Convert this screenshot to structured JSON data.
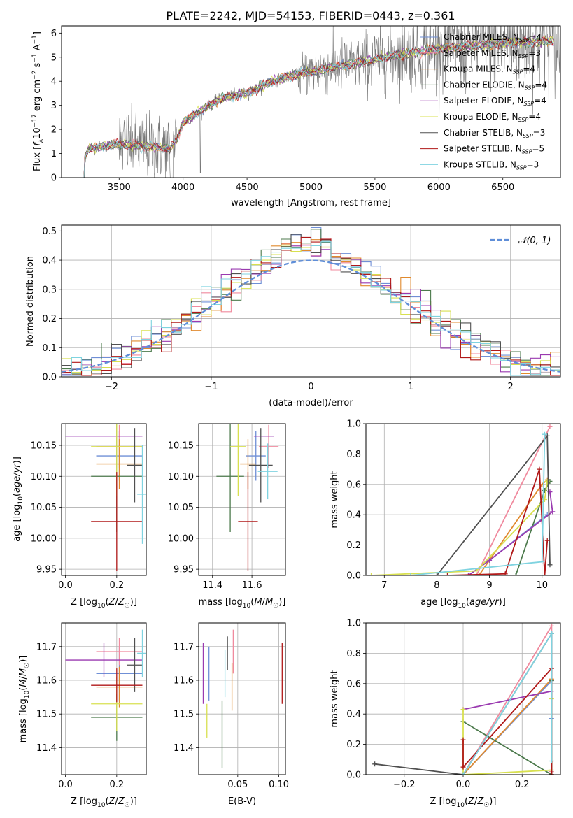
{
  "figure": {
    "title": "PLATE=2242, MJD=54153, FIBERID=0443, z=0.361"
  },
  "colors": {
    "series": [
      "#6f8fd6",
      "#f08a9e",
      "#e08a2e",
      "#4c7a4c",
      "#9a3ab0",
      "#d8e050",
      "#505050",
      "#b01818",
      "#7fd3e0"
    ],
    "normal_fit": "#5f8ed8"
  },
  "legend": {
    "series_names": [
      "Chabrier MILES, N_SSP=4",
      "Salpeter MILES, N_SSP=3",
      "Kroupa MILES, N_SSP=4",
      "Chabrier ELODIE, N_SSP=4",
      "Salpeter ELODIE, N_SSP=4",
      "Kroupa ELODIE, N_SSP=4",
      "Chabrier STELIB, N_SSP=3",
      "Salpeter STELIB, N_SSP=5",
      "Kroupa STELIB, N_SSP=3"
    ],
    "series_labels": [
      {
        "prefix": "Chabrier MILES, N",
        "sub": "SSP",
        "suffix": "=4"
      },
      {
        "prefix": "Salpeter MILES, N",
        "sub": "SSP",
        "suffix": "=3"
      },
      {
        "prefix": "Kroupa MILES, N",
        "sub": "SSP",
        "suffix": "=4"
      },
      {
        "prefix": "Chabrier ELODIE, N",
        "sub": "SSP",
        "suffix": "=4"
      },
      {
        "prefix": "Salpeter ELODIE, N",
        "sub": "SSP",
        "suffix": "=4"
      },
      {
        "prefix": "Kroupa ELODIE, N",
        "sub": "SSP",
        "suffix": "=4"
      },
      {
        "prefix": "Chabrier STELIB, N",
        "sub": "SSP",
        "suffix": "=3"
      },
      {
        "prefix": "Salpeter STELIB, N",
        "sub": "SSP",
        "suffix": "=5"
      },
      {
        "prefix": "Kroupa STELIB, N",
        "sub": "SSP",
        "suffix": "=3"
      }
    ],
    "normal_label": "𝒩(0, 1)"
  },
  "chart_data": [
    {
      "id": "spectrum",
      "type": "line",
      "xlabel": "wavelength [Angstrom, rest frame]",
      "ylabel": "Flux [f_λ 10^-17 erg cm^-2 s^-1 A^-1]",
      "xlim": [
        3050,
        6950
      ],
      "ylim": [
        0,
        6.3
      ],
      "xticks": [
        3500,
        4000,
        4500,
        5000,
        5500,
        6000,
        6500
      ],
      "yticks": [
        0,
        1,
        2,
        3,
        4,
        5,
        6
      ],
      "grid": false,
      "legend_position": "right",
      "x_range": [
        3210,
        6950
      ],
      "continuum_knots": [
        [
          3210,
          0.5
        ],
        [
          3260,
          1.2
        ],
        [
          3500,
          1.4
        ],
        [
          3700,
          1.3
        ],
        [
          3900,
          1.2
        ],
        [
          3950,
          1.6
        ],
        [
          4000,
          2.3
        ],
        [
          4300,
          3.3
        ],
        [
          4500,
          3.5
        ],
        [
          4700,
          4.0
        ],
        [
          4900,
          4.3
        ],
        [
          5100,
          4.5
        ],
        [
          5300,
          4.7
        ],
        [
          5500,
          4.9
        ],
        [
          5800,
          5.2
        ],
        [
          6100,
          5.4
        ],
        [
          6500,
          5.6
        ],
        [
          6950,
          5.7
        ]
      ]
    },
    {
      "id": "residuals",
      "type": "line",
      "xlabel": "(data-model)/error",
      "ylabel": "Normed distribution",
      "xlim": [
        -2.5,
        2.5
      ],
      "ylim": [
        0,
        0.52
      ],
      "xticks": [
        -2,
        -1,
        0,
        1,
        2
      ],
      "yticks": [
        0.0,
        0.1,
        0.2,
        0.3,
        0.4,
        0.5
      ],
      "grid": true,
      "legend_position": "top-right",
      "bin_width": 0.1
    },
    {
      "id": "age_vs_Z",
      "type": "scatter",
      "xlabel": "Z [log10(Z/Z☉)]",
      "ylabel": "age [log10(age/yr)]",
      "xlim": [
        -0.015,
        0.315
      ],
      "ylim": [
        9.94,
        10.185
      ],
      "xticks": [
        0.0,
        0.2
      ],
      "yticks": [
        9.95,
        10.0,
        10.05,
        10.1,
        10.15
      ],
      "grid": true,
      "points": [
        {
          "x": 0.21,
          "y": 10.133,
          "xerr": 0.09,
          "yerr": 0.04
        },
        {
          "x": 0.21,
          "y": 10.148,
          "xerr": 0.09,
          "yerr": 0.035
        },
        {
          "x": 0.21,
          "y": 10.12,
          "xerr": 0.09,
          "yerr": 0.04
        },
        {
          "x": 0.2,
          "y": 10.1,
          "xerr": 0.1,
          "yerr": 0.09
        },
        {
          "x": 0.15,
          "y": 10.165,
          "xerr": 0.15,
          "yerr": 0.0
        },
        {
          "x": 0.2,
          "y": 10.148,
          "xerr": 0.1,
          "yerr": 0.08
        },
        {
          "x": 0.27,
          "y": 10.118,
          "xerr": 0.03,
          "yerr": 0.06
        },
        {
          "x": 0.2,
          "y": 10.027,
          "xerr": 0.1,
          "yerr": 0.08
        },
        {
          "x": 0.3,
          "y": 10.071,
          "xerr": 0.02,
          "yerr": 0.08
        }
      ]
    },
    {
      "id": "age_vs_mass",
      "type": "scatter",
      "xlabel": "mass [log10(M/M☉)]",
      "ylabel": "",
      "xlim": [
        11.33,
        11.77
      ],
      "ylim": [
        9.94,
        10.185
      ],
      "xticks": [
        11.4,
        11.6
      ],
      "yticks": [
        9.95,
        10.0,
        10.05,
        10.1,
        10.15
      ],
      "grid": true,
      "points": [
        {
          "x": 11.62,
          "y": 10.133,
          "xerr": 0.05,
          "yerr": 0.04
        },
        {
          "x": 11.685,
          "y": 10.148,
          "xerr": 0.05,
          "yerr": 0.035
        },
        {
          "x": 11.58,
          "y": 10.12,
          "xerr": 0.04,
          "yerr": 0.04
        },
        {
          "x": 11.49,
          "y": 10.1,
          "xerr": 0.07,
          "yerr": 0.09
        },
        {
          "x": 11.66,
          "y": 10.165,
          "xerr": 0.05,
          "yerr": 0.0
        },
        {
          "x": 11.53,
          "y": 10.148,
          "xerr": 0.04,
          "yerr": 0.08
        },
        {
          "x": 11.645,
          "y": 10.118,
          "xerr": 0.06,
          "yerr": 0.06
        },
        {
          "x": 11.58,
          "y": 10.027,
          "xerr": 0.05,
          "yerr": 0.08
        },
        {
          "x": 11.68,
          "y": 10.108,
          "xerr": 0.05,
          "yerr": 0.045
        }
      ]
    },
    {
      "id": "massweight_vs_age",
      "type": "line",
      "xlabel": "age [log10(age/yr)]",
      "ylabel": "mass weight",
      "xlim": [
        6.65,
        10.35
      ],
      "ylim": [
        0,
        1.0
      ],
      "xticks": [
        7,
        8,
        9,
        10
      ],
      "yticks": [
        0.0,
        0.2,
        0.4,
        0.6,
        0.8,
        1.0
      ],
      "grid": true,
      "lines": [
        [
          [
            8.6,
            0.0
          ],
          [
            9.0,
            0.1
          ],
          [
            10.1,
            0.4
          ]
        ],
        [
          [
            8.75,
            0.0
          ],
          [
            10.15,
            0.98
          ]
        ],
        [
          [
            8.8,
            0.0
          ],
          [
            10.0,
            0.6
          ],
          [
            10.1,
            0.63
          ]
        ],
        [
          [
            9.5,
            0.0
          ],
          [
            10.05,
            0.56
          ],
          [
            10.15,
            0.62
          ]
        ],
        [
          [
            8.6,
            0.0
          ],
          [
            9.0,
            0.1
          ],
          [
            10.2,
            0.42
          ],
          [
            10.15,
            0.55
          ]
        ],
        [
          [
            6.75,
            0.0
          ],
          [
            8.75,
            0.03
          ],
          [
            10.05,
            0.5
          ],
          [
            10.1,
            0.62
          ]
        ],
        [
          [
            8.0,
            0.0
          ],
          [
            10.1,
            0.92
          ],
          [
            10.15,
            0.07
          ]
        ],
        [
          [
            8.2,
            0.0
          ],
          [
            9.3,
            0.01
          ],
          [
            9.95,
            0.7
          ],
          [
            10.05,
            0.0
          ],
          [
            10.1,
            0.23
          ]
        ],
        [
          [
            7.5,
            0.0
          ],
          [
            10.0,
            0.09
          ],
          [
            10.05,
            0.93
          ]
        ]
      ]
    },
    {
      "id": "mass_vs_Z",
      "type": "scatter",
      "xlabel": "Z [log10(Z/Z☉)]",
      "ylabel": "mass [log10(M/M☉)]",
      "xlim": [
        -0.015,
        0.315
      ],
      "ylim": [
        11.32,
        11.77
      ],
      "xticks": [
        0.0,
        0.2
      ],
      "yticks": [
        11.4,
        11.5,
        11.6,
        11.7
      ],
      "grid": true,
      "points": [
        {
          "x": 0.21,
          "y": 11.62,
          "xerr": 0.09,
          "yerr": 0.08
        },
        {
          "x": 0.21,
          "y": 11.685,
          "xerr": 0.09,
          "yerr": 0.04
        },
        {
          "x": 0.21,
          "y": 11.58,
          "xerr": 0.09,
          "yerr": 0.06
        },
        {
          "x": 0.2,
          "y": 11.49,
          "xerr": 0.1,
          "yerr": 0.07
        },
        {
          "x": 0.15,
          "y": 11.66,
          "xerr": 0.15,
          "yerr": 0.05
        },
        {
          "x": 0.2,
          "y": 11.53,
          "xerr": 0.1,
          "yerr": 0.08
        },
        {
          "x": 0.27,
          "y": 11.645,
          "xerr": 0.03,
          "yerr": 0.08
        },
        {
          "x": 0.2,
          "y": 11.585,
          "xerr": 0.1,
          "yerr": 0.05
        },
        {
          "x": 0.3,
          "y": 11.68,
          "xerr": 0.02,
          "yerr": 0.07
        }
      ]
    },
    {
      "id": "mass_vs_ebv",
      "type": "scatter",
      "xlabel": "E(B-V)",
      "ylabel": "",
      "xlim": [
        0.0025,
        0.108
      ],
      "ylim": [
        11.32,
        11.77
      ],
      "xticks": [
        0.05,
        0.1
      ],
      "yticks": [
        11.4,
        11.5,
        11.6,
        11.7
      ],
      "grid": true,
      "points": [
        {
          "x": 0.015,
          "y": 11.62,
          "xerr": 0.0,
          "yerr": 0.08
        },
        {
          "x": 0.0445,
          "y": 11.685,
          "xerr": 0.0,
          "yerr": 0.065
        },
        {
          "x": 0.043,
          "y": 11.58,
          "xerr": 0.0,
          "yerr": 0.07
        },
        {
          "x": 0.031,
          "y": 11.44,
          "xerr": 0.0,
          "yerr": 0.1
        },
        {
          "x": 0.008,
          "y": 11.62,
          "xerr": 0.0,
          "yerr": 0.09
        },
        {
          "x": 0.0125,
          "y": 11.48,
          "xerr": 0.0,
          "yerr": 0.05
        },
        {
          "x": 0.0375,
          "y": 11.68,
          "xerr": 0.0,
          "yerr": 0.05
        },
        {
          "x": 0.104,
          "y": 11.62,
          "xerr": 0.0,
          "yerr": 0.09
        },
        {
          "x": 0.0345,
          "y": 11.62,
          "xerr": 0.0,
          "yerr": 0.07
        }
      ]
    },
    {
      "id": "massweight_vs_Z",
      "type": "line",
      "xlabel": "Z [log10(Z/Z☉)]",
      "ylabel": "mass weight",
      "xlim": [
        -0.33,
        0.33
      ],
      "ylim": [
        0,
        1.0
      ],
      "xticks": [
        -0.2,
        0.0,
        0.2
      ],
      "yticks": [
        0.0,
        0.2,
        0.4,
        0.6,
        0.8,
        1.0
      ],
      "grid": true,
      "lines": [
        [
          [
            0.0,
            0.0
          ],
          [
            0.3,
            0.62
          ],
          [
            0.3,
            0.37
          ]
        ],
        [
          [
            0.0,
            0.0
          ],
          [
            0.3,
            0.98
          ],
          [
            0.3,
            0.02
          ]
        ],
        [
          [
            0.0,
            0.0
          ],
          [
            0.3,
            0.63
          ],
          [
            0.3,
            0.0
          ]
        ],
        [
          [
            0.0,
            0.35
          ],
          [
            0.3,
            0.0
          ],
          [
            0.3,
            0.62
          ]
        ],
        [
          [
            0.0,
            0.43
          ],
          [
            0.3,
            0.55
          ]
        ],
        [
          [
            0.0,
            0.43
          ],
          [
            0.0,
            0.0
          ],
          [
            0.3,
            0.03
          ],
          [
            0.3,
            0.5
          ]
        ],
        [
          [
            -0.3,
            0.07
          ],
          [
            0.0,
            0.0
          ],
          [
            0.3,
            0.93
          ],
          [
            0.3,
            0.0
          ]
        ],
        [
          [
            0.0,
            0.23
          ],
          [
            0.0,
            0.05
          ],
          [
            0.3,
            0.7
          ],
          [
            0.3,
            0.0
          ]
        ],
        [
          [
            0.0,
            0.0
          ],
          [
            0.3,
            0.93
          ],
          [
            0.3,
            0.09
          ]
        ]
      ]
    }
  ]
}
